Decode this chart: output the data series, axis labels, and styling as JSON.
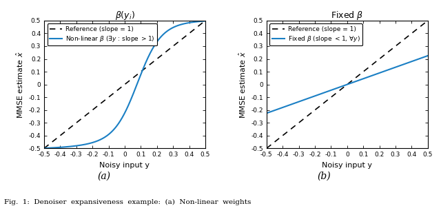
{
  "fig_width": 6.4,
  "fig_height": 2.99,
  "xlim": [
    -0.5,
    0.5
  ],
  "ylim": [
    -0.5,
    0.5
  ],
  "xlabel": "Noisy input y",
  "ylabel": "MMSE estimate $\\hat{x}$",
  "ref_label": "Reference (slope = 1)",
  "nonlinear_label": "Non-linear $\\beta$ ($\\exists y$ : slope $> 1$)",
  "fixed_label": "Fixed $\\beta$ (slope $< 1$, $\\forall y$)",
  "title_left": "$\\beta(y_i)$",
  "title_right": "Fixed $\\beta$",
  "caption_a": "(a)",
  "caption_b": "(b)",
  "ref_color": "#000000",
  "line_color": "#1a7fc4",
  "background_color": "#ffffff",
  "fixed_slope": 0.45,
  "caption_text": "Fig.  1:  Denoiser  expansiveness  example:  (a)  Non-linear  weights"
}
